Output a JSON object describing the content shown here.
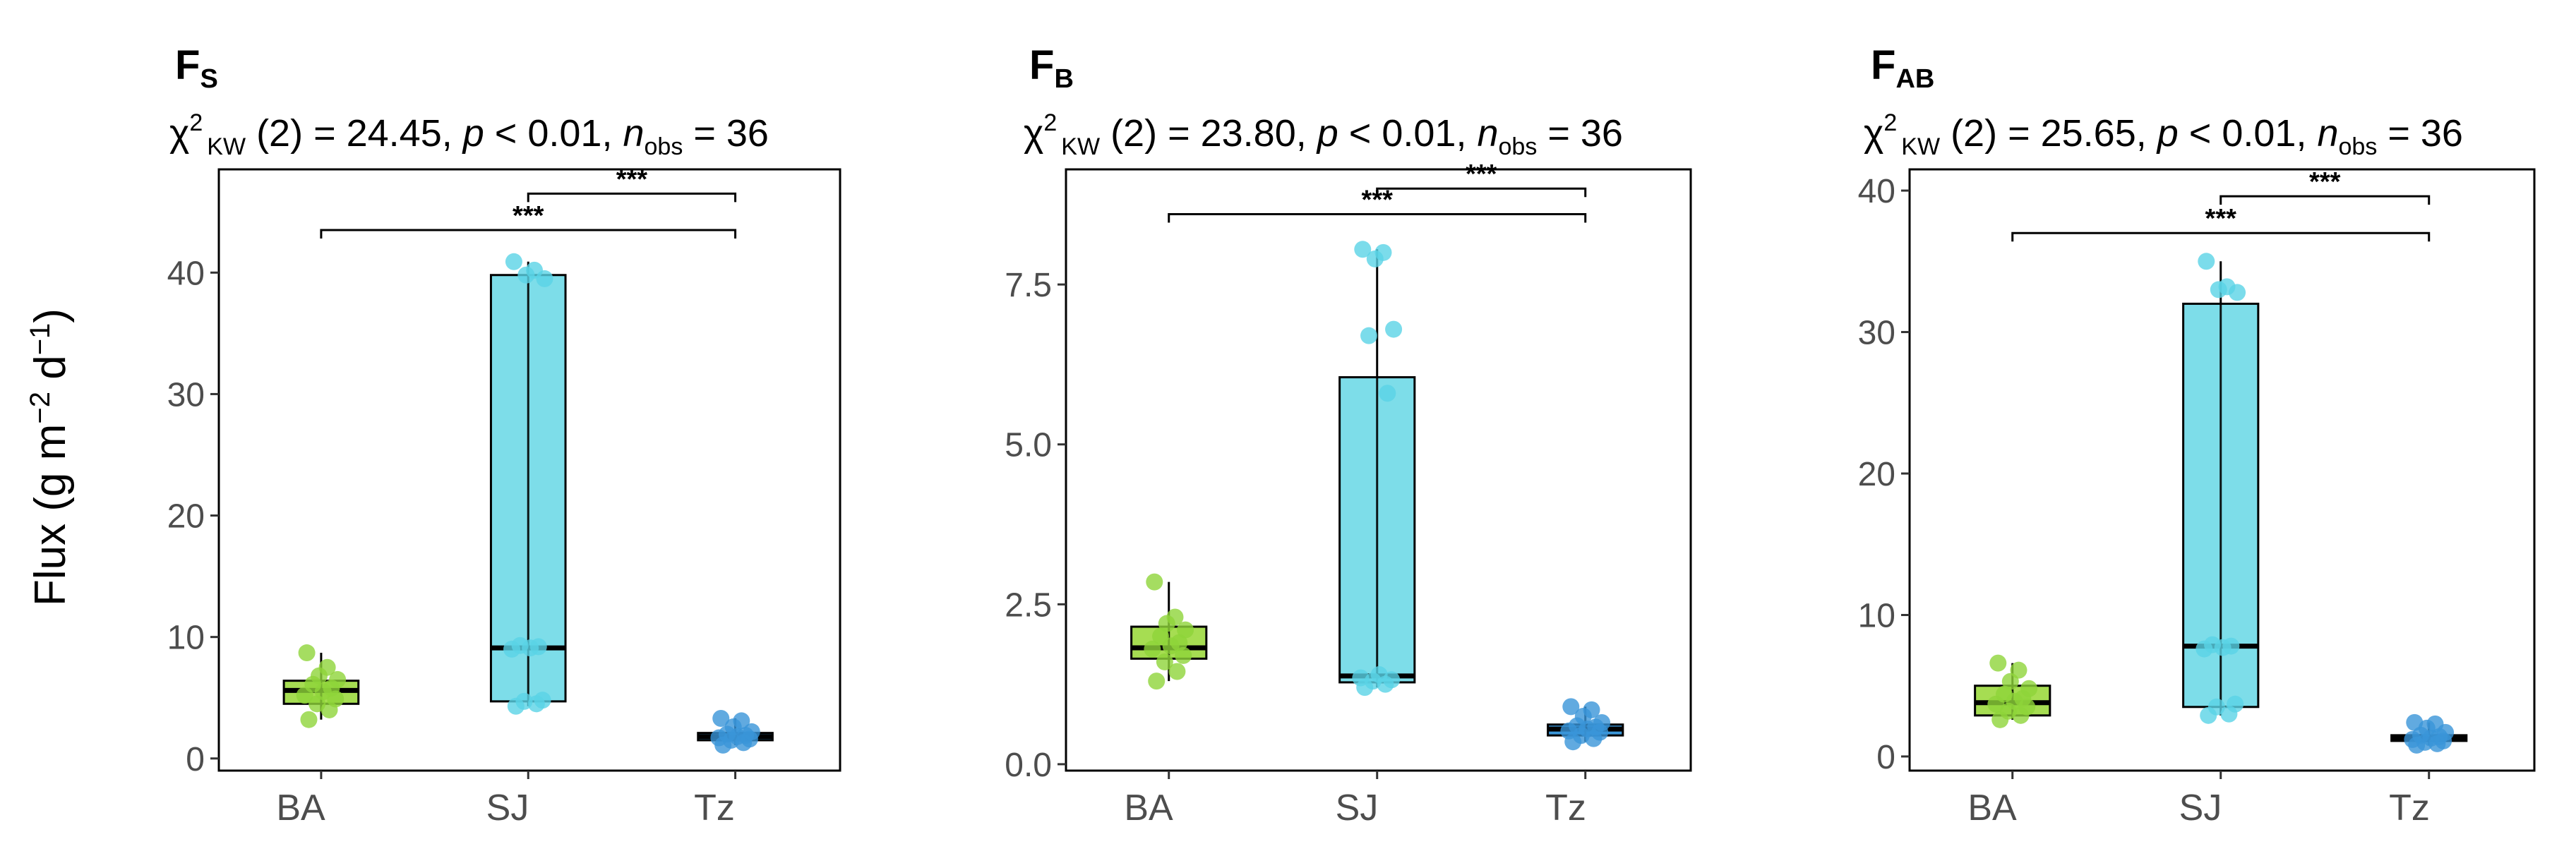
{
  "ylabel": {
    "main": "Flux (g m",
    "sup1": "−2",
    "mid": " d",
    "sup2": "−1",
    "end": ")"
  },
  "colors": {
    "BA": "#a6dd52",
    "SJ": "#7ddde9",
    "Tz": "#3b97d9",
    "BA_point": "#8fd43a",
    "SJ_point": "#5ad3e6",
    "Tz_point": "#3a95d8"
  },
  "chart_data": [
    {
      "type": "box",
      "title_main": "F",
      "title_sub": "S",
      "stat": {
        "chi": "χ",
        "chi_sup": "2",
        "chi_sub": "KW",
        "df_text": " (2) = 24.45, ",
        "p_symbol": "p",
        "p_text": " < 0.01, ",
        "n_symbol": "n",
        "n_sub": "obs",
        "n_text": " = 36"
      },
      "categories": [
        "BA",
        "SJ",
        "Tz"
      ],
      "ylim": [
        -1,
        48.5
      ],
      "yticks": [
        0,
        10,
        20,
        30,
        40
      ],
      "ytick_labels": [
        "0",
        "10",
        "20",
        "30",
        "40"
      ],
      "boxes": [
        {
          "q1": 4.5,
          "median": 5.6,
          "q3": 6.4,
          "whisker_low": 3.2,
          "whisker_high": 8.7
        },
        {
          "q1": 4.7,
          "median": 9.1,
          "q3": 39.8,
          "whisker_low": 4.3,
          "whisker_high": 40.9
        },
        {
          "q1": 1.5,
          "median": 1.8,
          "q3": 2.1,
          "whisker_low": 1.1,
          "whisker_high": 3.3
        }
      ],
      "points": [
        [
          3.2,
          4.0,
          4.5,
          4.9,
          5.2,
          5.5,
          5.8,
          6.1,
          6.5,
          6.8,
          7.5,
          8.7
        ],
        [
          4.3,
          4.5,
          4.7,
          4.8,
          9.0,
          9.1,
          9.2,
          9.3,
          39.5,
          39.8,
          40.2,
          40.9
        ],
        [
          1.1,
          1.3,
          1.5,
          1.6,
          1.7,
          1.8,
          1.9,
          2.0,
          2.2,
          2.6,
          3.1,
          3.3
        ]
      ],
      "brackets": [
        {
          "from": 1,
          "to": 2,
          "y": 46.5,
          "label": "***"
        },
        {
          "from": 0,
          "to": 2,
          "y": 43.5,
          "label": "***"
        }
      ]
    },
    {
      "type": "box",
      "title_main": "F",
      "title_sub": "B",
      "stat": {
        "chi": "χ",
        "chi_sup": "2",
        "chi_sub": "KW",
        "df_text": " (2) = 23.80, ",
        "p_symbol": "p",
        "p_text": " < 0.01, ",
        "n_symbol": "n",
        "n_sub": "obs",
        "n_text": " = 36"
      },
      "categories": [
        "BA",
        "SJ",
        "Tz"
      ],
      "ylim": [
        -0.1,
        9.3
      ],
      "yticks": [
        0,
        2.5,
        5,
        7.5
      ],
      "ytick_labels": [
        "0.0",
        "2.5",
        "5.0",
        "7.5"
      ],
      "boxes": [
        {
          "q1": 1.65,
          "median": 1.82,
          "q3": 2.15,
          "whisker_low": 1.3,
          "whisker_high": 2.85
        },
        {
          "q1": 1.28,
          "median": 1.38,
          "q3": 6.05,
          "whisker_low": 1.2,
          "whisker_high": 8.05
        },
        {
          "q1": 0.45,
          "median": 0.55,
          "q3": 0.62,
          "whisker_low": 0.35,
          "whisker_high": 0.9
        }
      ],
      "points": [
        [
          1.3,
          1.45,
          1.6,
          1.7,
          1.8,
          1.85,
          1.9,
          2.0,
          2.1,
          2.2,
          2.3,
          2.85
        ],
        [
          1.2,
          1.25,
          1.3,
          1.32,
          1.35,
          1.4,
          5.8,
          6.7,
          6.8,
          7.9,
          8.0,
          8.05
        ],
        [
          0.35,
          0.4,
          0.45,
          0.5,
          0.52,
          0.55,
          0.58,
          0.6,
          0.65,
          0.75,
          0.85,
          0.9
        ]
      ],
      "brackets": [
        {
          "from": 1,
          "to": 2,
          "y": 9.0,
          "label": "***"
        },
        {
          "from": 0,
          "to": 2,
          "y": 8.6,
          "label": "***"
        }
      ]
    },
    {
      "type": "box",
      "title_main": "F",
      "title_sub": "AB",
      "stat": {
        "chi": "χ",
        "chi_sup": "2",
        "chi_sub": "KW",
        "df_text": " (2) = 25.65, ",
        "p_symbol": "p",
        "p_text": " < 0.01, ",
        "n_symbol": "n",
        "n_sub": "obs",
        "n_text": " = 36"
      },
      "categories": [
        "BA",
        "SJ",
        "Tz"
      ],
      "ylim": [
        -1,
        41.5
      ],
      "yticks": [
        0,
        10,
        20,
        30,
        40
      ],
      "ytick_labels": [
        "0",
        "10",
        "20",
        "30",
        "40"
      ],
      "boxes": [
        {
          "q1": 2.9,
          "median": 3.8,
          "q3": 5.0,
          "whisker_low": 2.6,
          "whisker_high": 6.6
        },
        {
          "q1": 3.5,
          "median": 7.8,
          "q3": 32.0,
          "whisker_low": 2.9,
          "whisker_high": 35.0
        },
        {
          "q1": 1.1,
          "median": 1.3,
          "q3": 1.5,
          "whisker_low": 0.8,
          "whisker_high": 2.4
        }
      ],
      "points": [
        [
          2.6,
          2.9,
          3.2,
          3.5,
          3.7,
          3.9,
          4.1,
          4.4,
          4.8,
          5.3,
          6.1,
          6.6
        ],
        [
          2.9,
          3.0,
          3.5,
          3.7,
          7.6,
          7.7,
          7.8,
          7.9,
          32.8,
          33.0,
          33.2,
          35.0
        ],
        [
          0.8,
          0.9,
          1.0,
          1.1,
          1.2,
          1.3,
          1.4,
          1.5,
          1.7,
          2.0,
          2.3,
          2.4
        ]
      ],
      "brackets": [
        {
          "from": 1,
          "to": 2,
          "y": 39.6,
          "label": "***"
        },
        {
          "from": 0,
          "to": 2,
          "y": 37.0,
          "label": "***"
        }
      ]
    }
  ]
}
